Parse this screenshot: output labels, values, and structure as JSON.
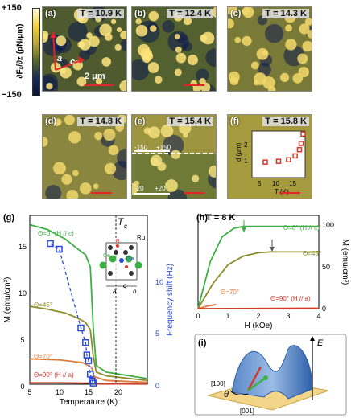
{
  "colorbar": {
    "max_label": "+150",
    "min_label": "−150",
    "axis_label": "∂Fₓ/∂z (pN/μm)"
  },
  "panels": [
    {
      "id": "a",
      "label": "(a)",
      "temp": "T = 10.9 K"
    },
    {
      "id": "b",
      "label": "(b)",
      "temp": "T = 12.4 K"
    },
    {
      "id": "c",
      "label": "(c)",
      "temp": "T = 14.3 K"
    },
    {
      "id": "d",
      "label": "(d)",
      "temp": "T = 14.8 K"
    },
    {
      "id": "e",
      "label": "(e)",
      "temp": "T = 15.4 K"
    },
    {
      "id": "f",
      "label": "(f)",
      "temp": "T = 15.8 K"
    }
  ],
  "panel_a": {
    "axis_a": "a",
    "axis_c": "c",
    "scalebar": "2 μm"
  },
  "panel_e": {
    "upper_min": "-150",
    "upper_max": "+150",
    "lower_min": "-20",
    "lower_max": "+20"
  },
  "inset_f": {
    "ylabel": "d (μm)",
    "xlabel": "T (K)",
    "yticks": [
      "1",
      "2"
    ],
    "xticks": [
      "5",
      "10",
      "15"
    ]
  },
  "panel_g": {
    "label": "(g)",
    "tc_label": "T",
    "tc_sub": "c",
    "ylabel_left": "M (emu/cm³)",
    "ylabel_right": "Frequency shift (Hz)",
    "xlabel": "Temperature (K)",
    "xticks": [
      "5",
      "10",
      "15",
      "20"
    ],
    "yticks_left": [
      "0",
      "5",
      "10",
      "15"
    ],
    "yticks_right": [
      "0",
      "5",
      "10"
    ],
    "curves": {
      "c0": "Θ=0° (H // c)",
      "c45": "Θ=45°",
      "c70": "Θ=70°",
      "c90": "Θ=90° (H // a)"
    },
    "crystal": {
      "ru": "Ru",
      "b": "B",
      "ga": "Ga",
      "ce": "Ce",
      "a": "a",
      "b_axis": "b",
      "c": "c"
    }
  },
  "panel_h": {
    "label": "(h)",
    "title": "T = 8 K",
    "xlabel": "H (kOe)",
    "ylabel": "M (emu/cm³)",
    "xticks": [
      "0",
      "1",
      "2",
      "3",
      "4"
    ],
    "yticks": [
      "0",
      "50",
      "100"
    ],
    "curves": {
      "c0": "Θ=0° (H // c)",
      "c45": "Θ=45°",
      "c70": "Θ=70°",
      "c90": "Θ=90° (H // a)"
    }
  },
  "panel_i": {
    "label": "(i)",
    "axis_100": "[100]",
    "axis_001": "[001]",
    "theta": "θ",
    "energy": "E"
  },
  "chart_data": [
    {
      "type": "line",
      "title": "",
      "xlabel": "Temperature (K)",
      "ylabel": "M (emu/cm³)",
      "xlim": [
        5,
        25
      ],
      "ylim": [
        0,
        18
      ],
      "series": [
        {
          "name": "Θ=0° (H // c)",
          "color": "#3cb043",
          "x": [
            5,
            8,
            11,
            13,
            14.5,
            15.3,
            15.8,
            16.3,
            18,
            25
          ],
          "y": [
            17,
            16.5,
            15.5,
            14.5,
            13.8,
            12.5,
            6,
            2,
            1.3,
            0.6
          ]
        },
        {
          "name": "Θ=45°",
          "color": "#8c8c2a",
          "x": [
            5,
            8,
            11,
            13,
            14.5,
            15.3,
            15.8,
            16.3,
            18,
            25
          ],
          "y": [
            8.3,
            8,
            7.6,
            7.1,
            6.6,
            5.8,
            3,
            1.3,
            0.9,
            0.4
          ]
        },
        {
          "name": "Θ=70°",
          "color": "#e07b3a",
          "x": [
            5,
            10,
            14,
            15.5,
            16,
            18,
            25
          ],
          "y": [
            2.7,
            2.6,
            2.3,
            1.8,
            0.8,
            0.4,
            0.2
          ]
        },
        {
          "name": "Θ=90° (H // a)",
          "color": "#d43a2a",
          "x": [
            5,
            10,
            15,
            16,
            20,
            25
          ],
          "y": [
            0.15,
            0.15,
            0.12,
            0.05,
            0.03,
            0.02
          ]
        },
        {
          "name": "Frequency shift",
          "color": "#2a4ad4",
          "x": [
            8.5,
            10,
            13.7,
            14.5,
            14.7,
            15.0,
            15.3,
            15.6,
            15.8
          ],
          "y": [
            12.5,
            12,
            5,
            3.7,
            2.6,
            2.1,
            0.9,
            0.3,
            0.1
          ]
        }
      ]
    },
    {
      "type": "line",
      "title": "T = 8 K",
      "xlabel": "H (kOe)",
      "ylabel": "M (emu/cm³)",
      "xlim": [
        0,
        4
      ],
      "ylim": [
        0,
        110
      ],
      "series": [
        {
          "name": "Θ=0° (H // c)",
          "x": [
            0,
            0.4,
            0.8,
            1.2,
            1.5,
            2,
            4
          ],
          "y": [
            0,
            55,
            85,
            95,
            97,
            97,
            97
          ]
        },
        {
          "name": "Θ=45°",
          "x": [
            0,
            0.5,
            1,
            1.5,
            2,
            2.4,
            4
          ],
          "y": [
            0,
            30,
            52,
            62,
            66,
            67,
            67
          ]
        },
        {
          "name": "Θ=70°",
          "x": [
            0,
            0.3,
            0.6
          ],
          "y": [
            0,
            3,
            5
          ]
        },
        {
          "name": "Θ=90° (H // a)",
          "x": [
            0,
            4
          ],
          "y": [
            0,
            0.5
          ]
        }
      ]
    },
    {
      "type": "scatter",
      "title": "",
      "xlabel": "T (K)",
      "ylabel": "d (μm)",
      "xlim": [
        0,
        16
      ],
      "ylim": [
        0,
        3
      ],
      "series": [
        {
          "name": "",
          "x": [
            4,
            8,
            11,
            13,
            14.3,
            14.8,
            15.4
          ],
          "y": [
            1.0,
            1.05,
            1.15,
            1.4,
            1.8,
            2.2,
            2.8
          ]
        }
      ]
    }
  ]
}
